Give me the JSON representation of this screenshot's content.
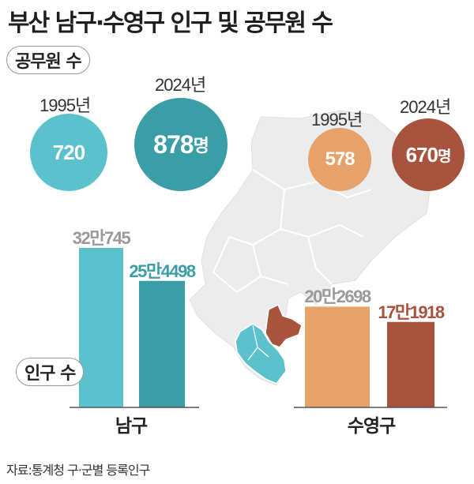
{
  "title": "부산 남구·수영구 인구 및 공무원 수",
  "staff_section_label": "공무원 수",
  "population_section_label": "인구 수",
  "source": "자료:통계청 구·군별 등록인구",
  "colors": {
    "namgu_1995": "#5bc2cd",
    "namgu_2024": "#3b9ea6",
    "suyeong_1995": "#e7a26b",
    "suyeong_2024": "#a8533d",
    "grey_label": "#9a9a9a",
    "map_land": "#ececec"
  },
  "staff": {
    "namgu": {
      "y1995": {
        "year": "1995년",
        "display": "720"
      },
      "y2024": {
        "year": "2024년",
        "display_num": "878",
        "display_unit": "명"
      }
    },
    "suyeong": {
      "y1995": {
        "year": "1995년",
        "display": "578"
      },
      "y2024": {
        "year": "2024년",
        "display_num": "670",
        "display_unit": "명"
      }
    }
  },
  "population": {
    "namgu": {
      "name": "남구",
      "y1995_label": "32만745",
      "y2024_label": "25만4498"
    },
    "suyeong": {
      "name": "수영구",
      "y1995_label": "20만2698",
      "y2024_label": "17만1918"
    }
  },
  "chart_data": [
    {
      "type": "scatter",
      "title": "공무원 수",
      "series": [
        {
          "name": "남구",
          "x": [
            "1995년",
            "2024년"
          ],
          "values": [
            720,
            878
          ]
        },
        {
          "name": "수영구",
          "x": [
            "1995년",
            "2024년"
          ],
          "values": [
            578,
            670
          ]
        }
      ],
      "unit": "명"
    },
    {
      "type": "bar",
      "title": "인구 수",
      "categories": [
        "남구",
        "수영구"
      ],
      "series": [
        {
          "name": "1995년",
          "values": [
            320745,
            202698
          ]
        },
        {
          "name": "2024년",
          "values": [
            254498,
            171918
          ]
        }
      ]
    }
  ]
}
